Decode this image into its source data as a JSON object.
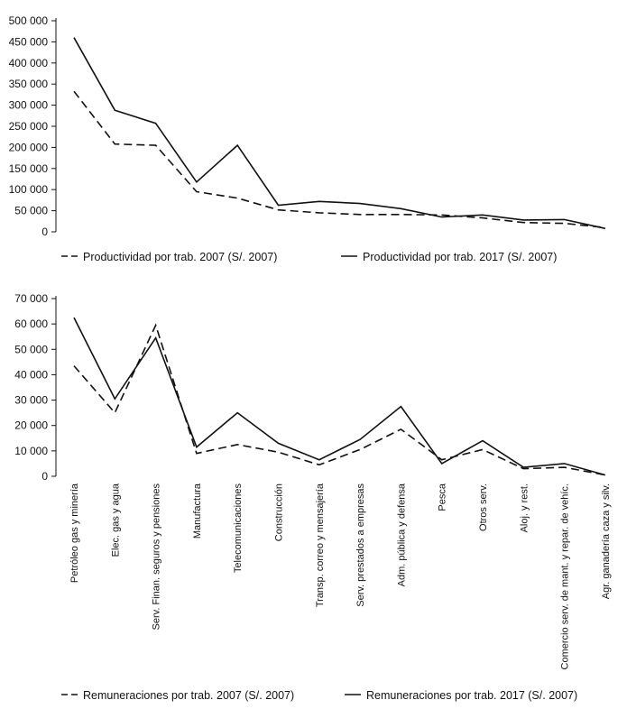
{
  "chart_data": [
    {
      "type": "line",
      "title": "",
      "xlabel": "",
      "ylabel": "",
      "ylim": [
        0,
        500000
      ],
      "yticks": [
        "0",
        "50 000",
        "100 000",
        "150 000",
        "200 000",
        "250 000",
        "300 000",
        "350 000",
        "400 000",
        "450 000",
        "500 000"
      ],
      "ytick_values": [
        0,
        50000,
        100000,
        150000,
        200000,
        250000,
        300000,
        350000,
        400000,
        450000,
        500000
      ],
      "categories": [
        "Petróleo gas y minería",
        "Elec. gas y agua",
        "Serv. Finan. seguros y pensiones",
        "Manufactura",
        "Telecomunicaciones",
        "Construcción",
        "Transp. correo y mensajería",
        "Serv. prestados a empresas",
        "Adm. pública y defensa",
        "Pesca",
        "Otros serv.",
        "Aloj. y rest.",
        "Comercio serv. de mant. y repar. de vehíc.",
        "Agr. ganadería caza y silv."
      ],
      "series": [
        {
          "name": "Productividad por trab. 2007 (S/. 2007)",
          "style": "dashed",
          "values": [
            333000,
            208000,
            205000,
            95000,
            80000,
            52000,
            45000,
            41000,
            41000,
            40000,
            33000,
            22000,
            20000,
            10000
          ]
        },
        {
          "name": "Productividad por trab. 2017 (S/. 2007)",
          "style": "solid",
          "values": [
            460000,
            288000,
            257000,
            118000,
            205000,
            63000,
            72000,
            67000,
            55000,
            35000,
            40000,
            28000,
            29000,
            8000
          ]
        }
      ]
    },
    {
      "type": "line",
      "title": "",
      "xlabel": "",
      "ylabel": "",
      "ylim": [
        0,
        70000
      ],
      "yticks": [
        "0",
        "10 000",
        "20 000",
        "30 000",
        "40 000",
        "50 000",
        "60 000",
        "70 000"
      ],
      "ytick_values": [
        0,
        10000,
        20000,
        30000,
        40000,
        50000,
        60000,
        70000
      ],
      "categories": [
        "Petróleo gas y minería",
        "Elec. gas y agua",
        "Serv. Finan. seguros y pensiones",
        "Manufactura",
        "Telecomunicaciones",
        "Construcción",
        "Transp. correo y mensajería",
        "Serv. prestados a empresas",
        "Adm. pública y defensa",
        "Pesca",
        "Otros serv.",
        "Aloj. y rest.",
        "Comercio serv. de mant. y repar. de vehíc.",
        "Agr. ganadería caza y silv."
      ],
      "series": [
        {
          "name": "Remuneraciones por trab. 2007 (S/. 2007)",
          "style": "dashed",
          "values": [
            43500,
            25000,
            59500,
            9000,
            12500,
            9500,
            4500,
            10500,
            18500,
            6500,
            10500,
            3000,
            3500,
            500
          ]
        },
        {
          "name": "Remuneraciones por trab. 2017 (S/. 2007)",
          "style": "solid",
          "values": [
            62500,
            30500,
            54500,
            11500,
            25000,
            13000,
            6500,
            14500,
            27500,
            5000,
            14000,
            3500,
            5000,
            500
          ]
        }
      ]
    }
  ]
}
